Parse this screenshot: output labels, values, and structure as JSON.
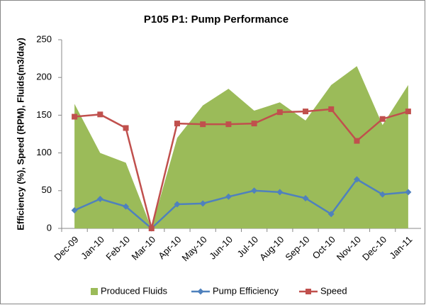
{
  "chart_data": {
    "type": "area_line",
    "title": "P105 P1: Pump Performance",
    "y_label": "Efficiency (%), Speed (RPM), Fluids(m3/day)",
    "categories": [
      "Dec-09",
      "Jan-10",
      "Feb-10",
      "Mar-10",
      "Apr-10",
      "May-10",
      "Jun-10",
      "Jul-10",
      "Aug-10",
      "Sep-10",
      "Oct-10",
      "Nov-10",
      "Dec-10",
      "Jan-11"
    ],
    "series": [
      {
        "name": "Produced Fluids",
        "kind": "area",
        "color": "#9bbb59",
        "values": [
          165,
          100,
          87,
          0,
          120,
          163,
          185,
          156,
          167,
          143,
          190,
          215,
          137,
          190
        ]
      },
      {
        "name": "Pump Efficiency",
        "kind": "line",
        "marker": "diamond",
        "color": "#4f81bd",
        "values": [
          24,
          39,
          29,
          0,
          32,
          33,
          42,
          50,
          48,
          40,
          19,
          65,
          45,
          48
        ]
      },
      {
        "name": "Speed",
        "kind": "line",
        "marker": "square",
        "color": "#c0504d",
        "values": [
          148,
          151,
          133,
          0,
          139,
          138,
          138,
          139,
          154,
          155,
          158,
          116,
          145,
          155
        ]
      }
    ],
    "ylim": [
      0,
      250
    ],
    "yticks": [
      0,
      50,
      100,
      150,
      200,
      250
    ],
    "legend": "bottom"
  }
}
